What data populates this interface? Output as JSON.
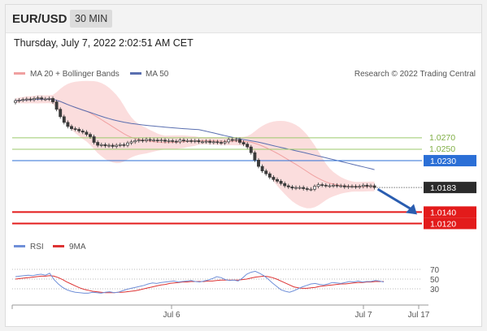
{
  "header": {
    "symbol": "EUR/USD",
    "timeframe": "30 MIN"
  },
  "datetime": "Thursday, July 7, 2022 2:02:51 AM CET",
  "legend": {
    "ma_bb": "MA 20 + Bollinger Bands",
    "ma50": "MA 50",
    "rsi": "RSI",
    "rsi_ma": "9MA",
    "credit": "Research © 2022 Trading Central"
  },
  "colors": {
    "candle": "#3a3a3a",
    "bb_fill": "#f9c6c6",
    "ma20": "#f0a0a0",
    "ma50": "#5a6fb0",
    "resistance": "#9bc96b",
    "pivot": "#2b6fd6",
    "support": "#e31b1b",
    "current": "#2b2b2b",
    "arrow": "#2a5db0",
    "rsi": "#6f8fd8",
    "rsi_ma": "#dd3333"
  },
  "chart_data": [
    {
      "type": "candlestick",
      "title": "",
      "x_ticks": [
        "Jul 6",
        "Jul 7",
        "Jul 17"
      ],
      "ylim": [
        1.0105,
        1.0375
      ],
      "close": [
        1.0335,
        1.0336,
        1.0337,
        1.0338,
        1.0337,
        1.0339,
        1.034,
        1.0338,
        1.0338,
        1.0339,
        1.0333,
        1.032,
        1.0307,
        1.0297,
        1.029,
        1.0286,
        1.0285,
        1.0282,
        1.028,
        1.0276,
        1.0272,
        1.0262,
        1.0257,
        1.0258,
        1.0256,
        1.0257,
        1.0255,
        1.0257,
        1.0258,
        1.0257,
        1.0261,
        1.0263,
        1.0265,
        1.0266,
        1.0265,
        1.0267,
        1.0266,
        1.0266,
        1.0265,
        1.0266,
        1.0264,
        1.0265,
        1.0264,
        1.0263,
        1.0266,
        1.0265,
        1.0265,
        1.0264,
        1.0265,
        1.0263,
        1.0263,
        1.0264,
        1.0262,
        1.0263,
        1.0262,
        1.0261,
        1.0263,
        1.0267,
        1.0266,
        1.0267,
        1.0262,
        1.0259,
        1.0254,
        1.0244,
        1.0231,
        1.022,
        1.0212,
        1.0207,
        1.0201,
        1.0197,
        1.0194,
        1.019,
        1.0186,
        1.0184,
        1.0182,
        1.0183,
        1.0183,
        1.0181,
        1.018,
        1.018,
        1.0185,
        1.0188,
        1.0187,
        1.0186,
        1.0186,
        1.0187,
        1.0186,
        1.0186,
        1.0184,
        1.0185,
        1.0185,
        1.0184,
        1.0185,
        1.0187,
        1.0185,
        1.0186,
        1.0183
      ],
      "levels": {
        "resistance": [
          "1.0270",
          "1.0250"
        ],
        "pivot": "1.0230",
        "current": "1.0183",
        "support": [
          "1.0140",
          "1.0120"
        ]
      },
      "series": [
        {
          "name": "MA 20 + Bollinger Bands",
          "indicator": "MA 20 + Bollinger Bands"
        },
        {
          "name": "MA 50",
          "indicator": "MA 50"
        }
      ]
    },
    {
      "type": "line",
      "title": "",
      "ylim": [
        0,
        100
      ],
      "y_ticks": [
        "70",
        "50",
        "30"
      ],
      "series": [
        {
          "name": "RSI",
          "values": [
            55,
            56,
            57,
            58,
            57,
            59,
            60,
            58,
            62,
            49,
            40,
            33,
            28,
            25,
            23,
            22,
            21,
            21,
            23,
            22,
            21,
            23,
            24,
            22,
            23,
            26,
            29,
            31,
            33,
            35,
            37,
            40,
            42,
            41,
            43,
            44,
            45,
            46,
            44,
            45,
            46,
            47,
            45,
            44,
            46,
            48,
            51,
            55,
            53,
            49,
            47,
            48,
            46,
            52,
            60,
            64,
            66,
            62,
            57,
            50,
            42,
            35,
            28,
            25,
            23,
            26,
            30,
            34,
            37,
            40,
            41,
            39,
            38,
            40,
            43,
            42,
            41,
            43,
            45,
            44,
            46,
            44,
            45,
            45,
            47,
            46,
            44
          ]
        },
        {
          "name": "9MA",
          "values": [
            50,
            51,
            52,
            53,
            54,
            55,
            56,
            56,
            57,
            56,
            53,
            49,
            44,
            40,
            36,
            32,
            29,
            27,
            25,
            24,
            23,
            22,
            22,
            22,
            23,
            23,
            24,
            25,
            26,
            28,
            30,
            32,
            34,
            36,
            38,
            39,
            41,
            42,
            43,
            44,
            44,
            45,
            45,
            45,
            45,
            46,
            46,
            47,
            48,
            48,
            48,
            48,
            48,
            49,
            50,
            52,
            54,
            55,
            56,
            55,
            53,
            50,
            46,
            42,
            38,
            34,
            32,
            31,
            31,
            32,
            33,
            35,
            36,
            37,
            38,
            39,
            40,
            40,
            41,
            42,
            43,
            43,
            44,
            44,
            45,
            45,
            45
          ]
        }
      ]
    }
  ]
}
